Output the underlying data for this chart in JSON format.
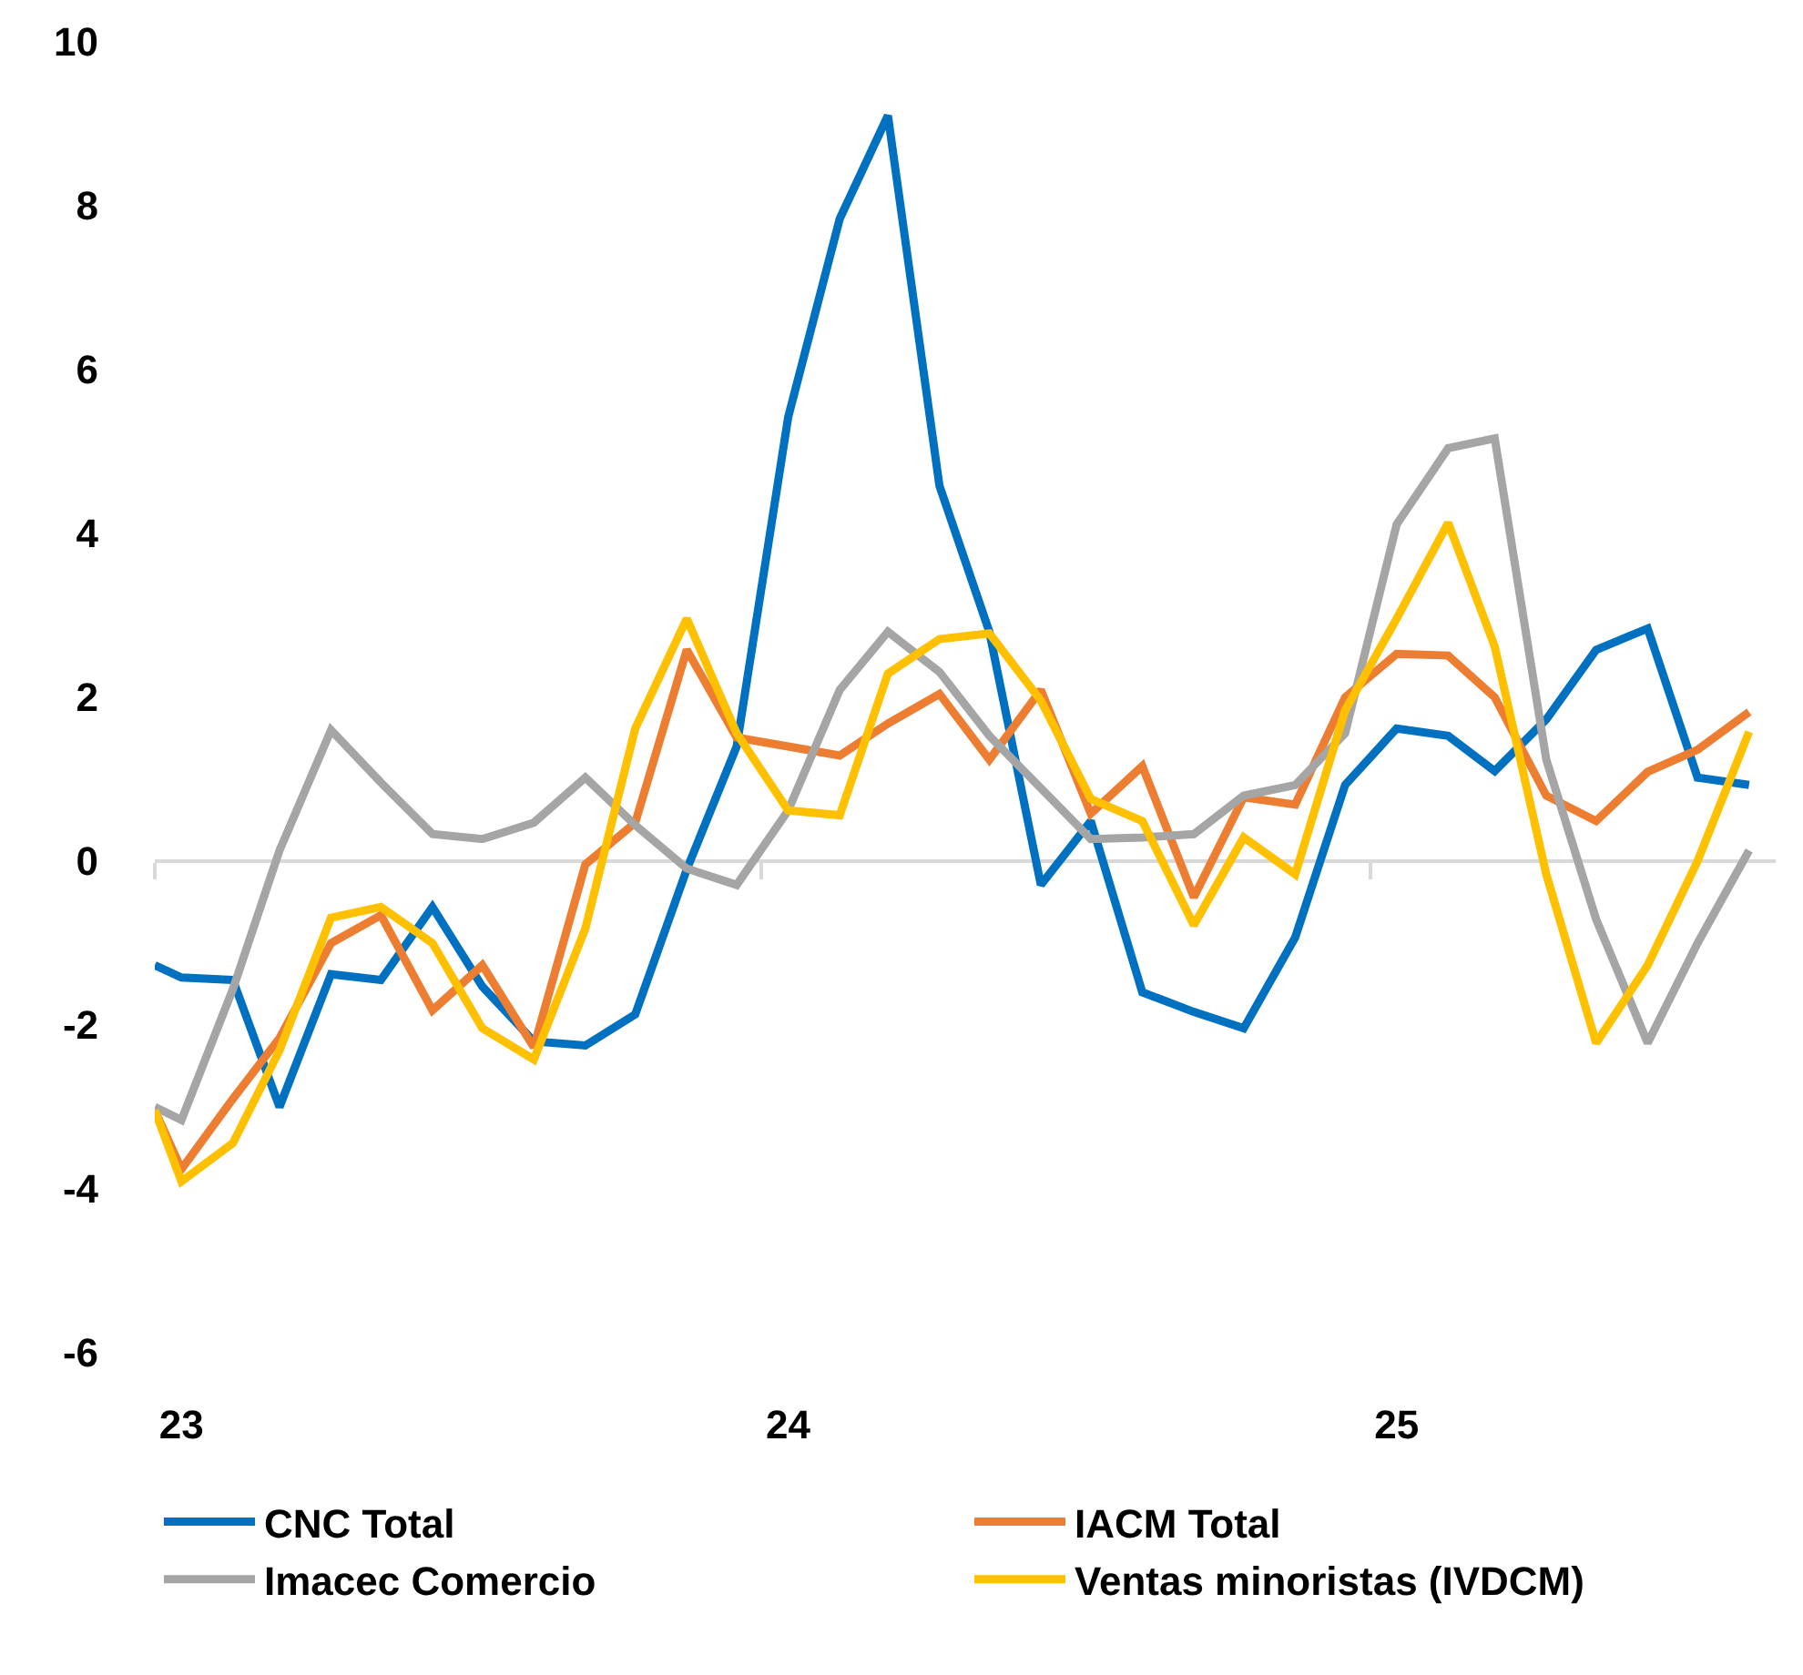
{
  "chart_data": {
    "type": "line",
    "x": [
      "2022-12-16",
      "2023-01",
      "2023-02",
      "2023-03",
      "2023-04",
      "2023-05",
      "2023-06",
      "2023-07",
      "2023-08",
      "2023-09",
      "2023-10",
      "2023-11",
      "2023-12",
      "2024-01",
      "2024-02",
      "2024-03",
      "2024-04",
      "2024-05",
      "2024-06",
      "2024-07",
      "2024-08",
      "2024-09",
      "2024-10",
      "2024-11",
      "2024-12",
      "2025-01",
      "2025-02",
      "2025-03",
      "2025-04",
      "2025-05",
      "2025-06",
      "2025-07",
      "2025-08"
    ],
    "series": [
      {
        "name": "CNC Total",
        "color": "#0070c0",
        "values": [
          -1.27,
          -1.42,
          -1.45,
          -3.0,
          -1.38,
          -1.45,
          -0.56,
          -1.53,
          -2.2,
          -2.25,
          -1.87,
          -0.1,
          1.4,
          5.42,
          7.84,
          9.1,
          4.58,
          2.8,
          -0.29,
          0.49,
          -1.6,
          -1.84,
          -2.04,
          -0.93,
          0.93,
          1.62,
          1.53,
          1.1,
          1.73,
          2.58,
          2.84,
          1.02,
          0.93
        ]
      },
      {
        "name": "IACM Total",
        "color": "#ed7d31",
        "values": [
          -3.04,
          -3.76,
          -2.9,
          -2.16,
          -1.0,
          -0.66,
          -1.82,
          -1.27,
          -2.27,
          -0.04,
          0.47,
          2.58,
          1.51,
          1.4,
          1.29,
          1.68,
          2.04,
          1.24,
          2.09,
          0.58,
          1.16,
          -0.44,
          0.78,
          0.69,
          2.0,
          2.53,
          2.51,
          2.0,
          0.8,
          0.49,
          1.09,
          1.36,
          1.82
        ]
      },
      {
        "name": "Imacec Comercio",
        "color": "#a5a5a5",
        "values": [
          -3.0,
          -3.16,
          -1.56,
          0.13,
          1.6,
          0.96,
          0.33,
          0.27,
          0.47,
          1.02,
          0.44,
          -0.09,
          -0.29,
          0.62,
          2.09,
          2.8,
          2.31,
          1.53,
          0.89,
          0.27,
          0.29,
          0.33,
          0.8,
          0.93,
          1.56,
          4.11,
          5.04,
          5.16,
          1.24,
          -0.71,
          -2.22,
          -1.0,
          0.13
        ]
      },
      {
        "name": "Ventas minoristas (IVDCM)",
        "color": "#ffc000",
        "values": [
          -3.04,
          -3.91,
          -3.44,
          -2.31,
          -0.69,
          -0.56,
          -1.0,
          -2.04,
          -2.42,
          -0.82,
          1.62,
          2.96,
          1.56,
          0.62,
          0.56,
          2.29,
          2.71,
          2.78,
          1.96,
          0.76,
          0.49,
          -0.78,
          0.29,
          -0.16,
          1.84,
          2.96,
          4.13,
          2.62,
          -0.16,
          -2.22,
          -1.27,
          0.0,
          1.58
        ]
      }
    ],
    "xlim": [
      "2022-12-16",
      "2025-08-17"
    ],
    "xticks": [
      {
        "value": "2023-01",
        "label": "23"
      },
      {
        "value": "2024-01",
        "label": "24"
      },
      {
        "value": "2025-01",
        "label": "25"
      }
    ],
    "ylim": [
      -6,
      10
    ],
    "yticks": [
      -6,
      -4,
      -2,
      0,
      2,
      4,
      6,
      8,
      10
    ],
    "ref_lines": [
      {
        "axis": "y",
        "value": 0,
        "color": "#d9d9d9",
        "line_style": "solid"
      }
    ],
    "grid": false,
    "legend": "bottom",
    "marker": "none",
    "line_style": "solid"
  }
}
